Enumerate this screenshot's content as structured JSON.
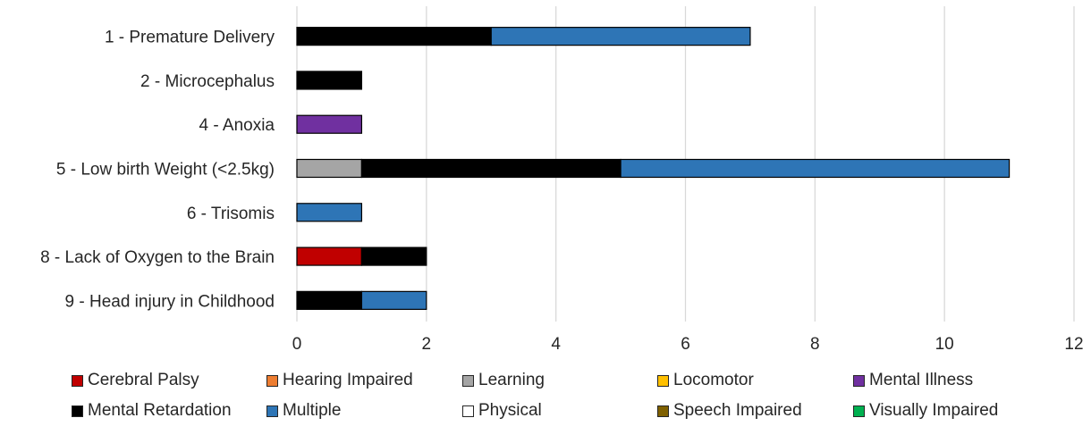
{
  "chart_data": {
    "type": "bar",
    "orientation": "horizontal",
    "stacked": true,
    "categories": [
      "1 - Premature Delivery",
      "2 - Microcephalus",
      "4 - Anoxia",
      "5 - Low birth Weight (<2.5kg)",
      "6 - Trisomis",
      "8 - Lack of Oxygen to the Brain",
      "9 - Head injury in Childhood"
    ],
    "series": [
      {
        "name": "Cerebral Palsy",
        "color": "#C00000",
        "values": [
          0,
          0,
          0,
          0,
          0,
          1,
          0
        ]
      },
      {
        "name": "Hearing Impaired",
        "color": "#ED7D31",
        "values": [
          0,
          0,
          0,
          0,
          0,
          0,
          0
        ]
      },
      {
        "name": "Learning",
        "color": "#A5A5A5",
        "values": [
          0,
          0,
          0,
          1,
          0,
          0,
          0
        ]
      },
      {
        "name": "Locomotor",
        "color": "#FFC000",
        "values": [
          0,
          0,
          0,
          0,
          0,
          0,
          0
        ]
      },
      {
        "name": "Mental Illness",
        "color": "#7030A0",
        "values": [
          0,
          0,
          1,
          0,
          0,
          0,
          0
        ]
      },
      {
        "name": "Mental Retardation",
        "color": "#000000",
        "values": [
          3,
          1,
          0,
          4,
          0,
          1,
          1
        ]
      },
      {
        "name": "Multiple",
        "color": "#2E75B6",
        "values": [
          4,
          0,
          0,
          6,
          1,
          0,
          1
        ]
      },
      {
        "name": "Physical",
        "color": "#FFFFFF",
        "values": [
          0,
          0,
          0,
          0,
          0,
          0,
          0
        ]
      },
      {
        "name": "Speech Impaired",
        "color": "#7F6000",
        "values": [
          0,
          0,
          0,
          0,
          0,
          0,
          0
        ]
      },
      {
        "name": "Visually Impaired",
        "color": "#00B050",
        "values": [
          0,
          0,
          0,
          0,
          0,
          0,
          0
        ]
      }
    ],
    "xlim": [
      0,
      12
    ],
    "xticks": [
      "0",
      "2",
      "4",
      "6",
      "8",
      "10",
      "12"
    ],
    "title": "",
    "xlabel": "",
    "ylabel": "",
    "grid": "vertical",
    "legend": "bottom"
  }
}
